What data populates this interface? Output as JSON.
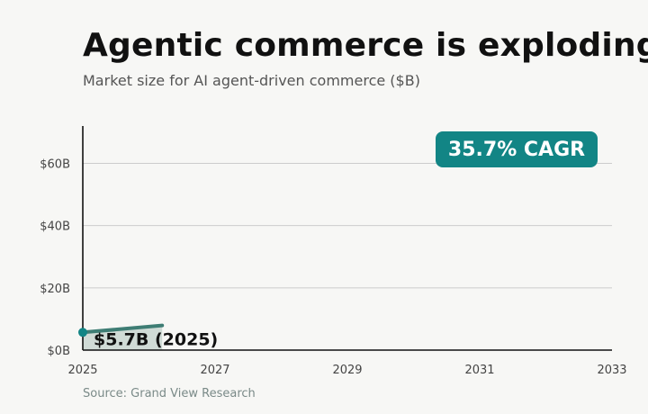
{
  "title": "Agentic commerce is exploding",
  "subtitle": "Market size for AI agent-driven commerce ($B)",
  "source": "Source: Grand View Research",
  "badge": "35.7% CAGR",
  "colors": {
    "accent": "#128585",
    "line": "#3e7d74",
    "area": "#c9d6d0",
    "grid": "#cccccc",
    "axis": "#111111"
  },
  "chart_data": {
    "type": "area",
    "title": "Agentic commerce is exploding",
    "subtitle": "Market size for AI agent-driven commerce ($B)",
    "x": [
      2025,
      2026.2
    ],
    "y": [
      5.7,
      7.9
    ],
    "xlim": [
      2025,
      2033
    ],
    "ylim": [
      0,
      72
    ],
    "xticks": [
      2025,
      2027,
      2029,
      2031,
      2033
    ],
    "xtick_labels": [
      "2025",
      "2027",
      "2029",
      "2031",
      "2033"
    ],
    "yticks": [
      0,
      20,
      40,
      60
    ],
    "ytick_labels": [
      "$0B",
      "$20B",
      "$40B",
      "$60B"
    ],
    "grid": "horizontal",
    "annotations": [
      {
        "text": "$5.7B (2025)",
        "x": 2025,
        "y": 5.7
      },
      {
        "text": "35.7% CAGR"
      }
    ]
  }
}
